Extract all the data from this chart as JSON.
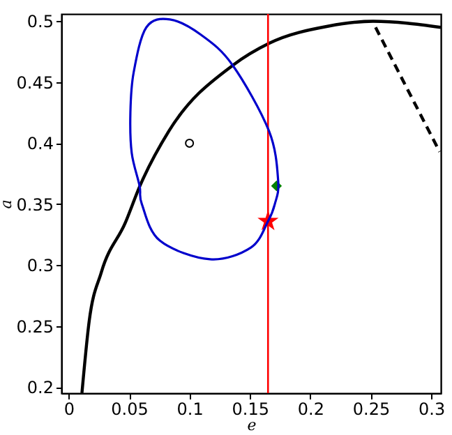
{
  "chart_data": {
    "type": "line",
    "xlabel": "e",
    "ylabel": "a",
    "xlim": [
      -0.006,
      0.308
    ],
    "ylim": [
      0.195,
      0.506
    ],
    "xticks": [
      0,
      0.05,
      0.1,
      0.15,
      0.2,
      0.25,
      0.3
    ],
    "yticks": [
      0.2,
      0.25,
      0.3,
      0.35,
      0.4,
      0.45,
      0.5
    ],
    "grid": false,
    "series": [
      {
        "color": "#000000",
        "line_style": "solid",
        "x": [
          0.011,
          0.017,
          0.027,
          0.047,
          0.059,
          0.083,
          0.136,
          0.166,
          0.215,
          0.252,
          0.308
        ],
        "values": [
          0.195,
          0.254,
          0.294,
          0.335,
          0.365,
          0.41,
          0.464,
          0.482,
          0.496,
          0.5,
          0.495
        ]
      },
      {
        "color": "#000000",
        "line_style": "dashed",
        "x": [
          0.254,
          0.307
        ],
        "values": [
          0.495,
          0.393
        ]
      },
      {
        "type": "scatter",
        "marker": "circle",
        "color": "#000000",
        "x": [
          0.1
        ],
        "values": [
          0.4
        ]
      },
      {
        "type": "scatter",
        "marker": "diamond",
        "color": "#008000",
        "x": [
          0.172
        ],
        "values": [
          0.365
        ]
      },
      {
        "type": "scatter",
        "marker": "star",
        "color": "#ff0000",
        "x": [
          0.165
        ],
        "values": [
          0.336
        ]
      }
    ],
    "ref_lines": [
      {
        "axis": "x",
        "value": 0.165,
        "color": "#ff0000"
      }
    ]
  }
}
